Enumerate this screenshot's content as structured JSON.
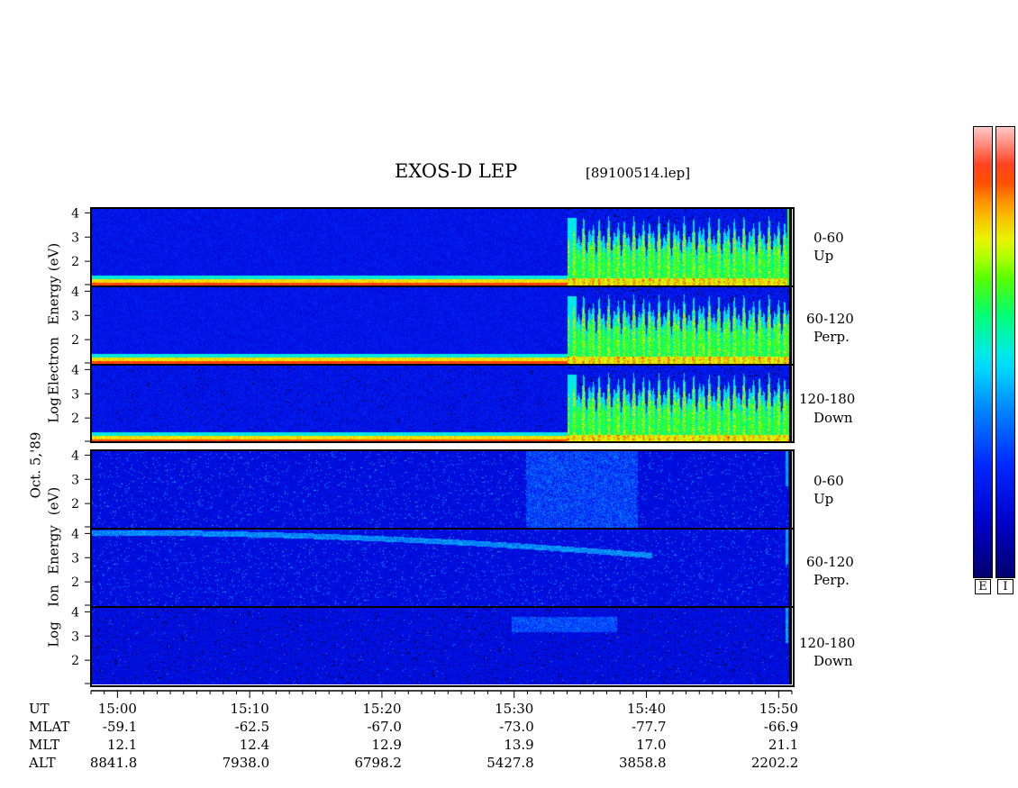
{
  "title": "EXOS-D LEP",
  "file_id": "[89100514.lep]",
  "date_label": "Oct. 5,'89",
  "electron_axis": [
    "Log",
    "Electron",
    "Energy",
    "(eV)"
  ],
  "ion_axis": [
    "Log",
    "Ion",
    "Energy",
    "(eV)"
  ],
  "colorbar_tags": [
    "E",
    "I"
  ],
  "chart_data": {
    "type": "heatmap",
    "x_axis": {
      "quantity": "UT",
      "ticks": [
        "15:00",
        "15:10",
        "15:20",
        "15:30",
        "15:40",
        "15:50"
      ],
      "range": [
        "14:58",
        "15:51"
      ]
    },
    "y_axis": {
      "scale": "log",
      "ticks": [
        2,
        3,
        4
      ],
      "range": [
        1,
        4.2
      ]
    },
    "electron_panels": [
      {
        "angle": "0-60",
        "direction": "Up"
      },
      {
        "angle": "60-120",
        "direction": "Perp."
      },
      {
        "angle": "120-180",
        "direction": "Down"
      }
    ],
    "ion_panels": [
      {
        "angle": "0-60",
        "direction": "Up"
      },
      {
        "angle": "60-120",
        "direction": "Perp."
      },
      {
        "angle": "120-180",
        "direction": "Down"
      }
    ],
    "orbit_table": {
      "rows": [
        {
          "label": "UT",
          "values": [
            "15:00",
            "15:10",
            "15:20",
            "15:30",
            "15:40",
            "15:50"
          ]
        },
        {
          "label": "MLAT",
          "values": [
            "-59.1",
            "-62.5",
            "-67.0",
            "-73.0",
            "-77.7",
            "-66.9"
          ]
        },
        {
          "label": "MLT",
          "values": [
            "12.1",
            "12.4",
            "12.9",
            "13.9",
            "17.0",
            "21.1"
          ]
        },
        {
          "label": "ALT",
          "values": [
            "8841.8",
            "7938.0",
            "6798.2",
            "5427.8",
            "3858.8",
            "2202.2"
          ]
        }
      ]
    },
    "colorscale": [
      "#ffffff",
      "#ff0000",
      "#ff8000",
      "#ffff00",
      "#00ff00",
      "#00ffff",
      "#0080ff",
      "#0000ff",
      "#00008b"
    ]
  }
}
